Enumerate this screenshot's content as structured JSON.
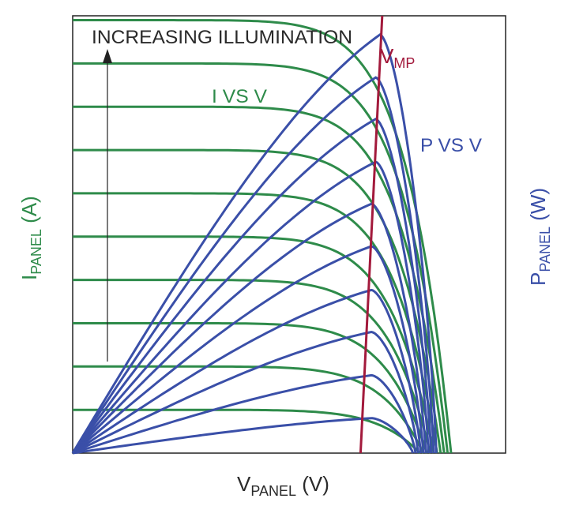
{
  "chart_data": {
    "type": "line",
    "annotations": {
      "illumination_label": "INCREASING ILLUMINATION",
      "iv_label": "I VS V",
      "pv_label": "P VS V",
      "vmp_main": "V",
      "vmp_sub": "MP"
    },
    "xlabel": {
      "main": "V",
      "sub": "PANEL",
      "unit": " (V)"
    },
    "ylabel_left": {
      "main": "I",
      "sub": "PANEL",
      "unit": " (A)"
    },
    "ylabel_right": {
      "main": "P",
      "sub": "PANEL",
      "unit": " (W)"
    },
    "xlim": [
      0,
      1
    ],
    "ylim": [
      0,
      1
    ],
    "grid": false,
    "colors": {
      "iv": "#2e8b4a",
      "pv": "#3a4fa8",
      "vmp": "#a31a3c",
      "arrow": "#222222",
      "frame": "#222222",
      "text": "#2a2a2a"
    },
    "iv_series": [
      {
        "isc": 0.099,
        "voc": 0.802
      },
      {
        "isc": 0.198,
        "voc": 0.81
      },
      {
        "isc": 0.297,
        "voc": 0.818
      },
      {
        "isc": 0.396,
        "voc": 0.826
      },
      {
        "isc": 0.495,
        "voc": 0.834
      },
      {
        "isc": 0.594,
        "voc": 0.842
      },
      {
        "isc": 0.693,
        "voc": 0.85
      },
      {
        "isc": 0.792,
        "voc": 0.858
      },
      {
        "isc": 0.891,
        "voc": 0.866
      },
      {
        "isc": 0.99,
        "voc": 0.874
      }
    ],
    "pv_series": [
      {
        "vmp": 0.69,
        "pmax": 0.08,
        "voc": 0.786
      },
      {
        "vmp": 0.69,
        "pmax": 0.178,
        "voc": 0.792
      },
      {
        "vmp": 0.69,
        "pmax": 0.277,
        "voc": 0.798
      },
      {
        "vmp": 0.69,
        "pmax": 0.373,
        "voc": 0.804
      },
      {
        "vmp": 0.69,
        "pmax": 0.473,
        "voc": 0.81
      },
      {
        "vmp": 0.69,
        "pmax": 0.57,
        "voc": 0.816
      },
      {
        "vmp": 0.7,
        "pmax": 0.666,
        "voc": 0.822
      },
      {
        "vmp": 0.7,
        "pmax": 0.764,
        "voc": 0.828
      },
      {
        "vmp": 0.7,
        "pmax": 0.859,
        "voc": 0.834
      },
      {
        "vmp": 0.71,
        "pmax": 0.957,
        "voc": 0.84
      }
    ],
    "vmp_line": {
      "x_bottom": 0.665,
      "x_top": 0.715
    }
  }
}
